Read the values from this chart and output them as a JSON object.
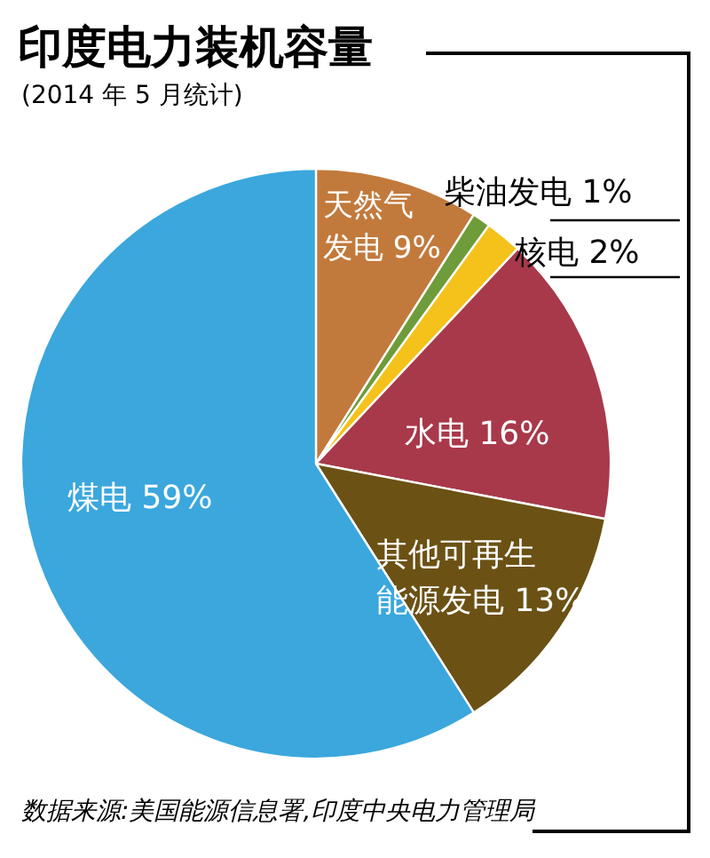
{
  "chart_data": {
    "type": "pie",
    "title": "印度电力装机容量",
    "subtitle": "(2014 年 5 月统计)",
    "categories": [
      "天然气发电",
      "柴油发电",
      "核电",
      "水电",
      "其他可再生能源发电",
      "煤电"
    ],
    "values": [
      9,
      1,
      2,
      16,
      13,
      59
    ],
    "colors": [
      "#c27a3c",
      "#6f9c3a",
      "#f4c21a",
      "#a8394a",
      "#6b5114",
      "#3ba7dd"
    ],
    "value_labels": [
      "9%",
      "1%",
      "2%",
      "16%",
      "13%",
      "59%"
    ],
    "annotations": [
      "数据来源:美国能源信息署,印度中央电力管理局"
    ]
  }
}
